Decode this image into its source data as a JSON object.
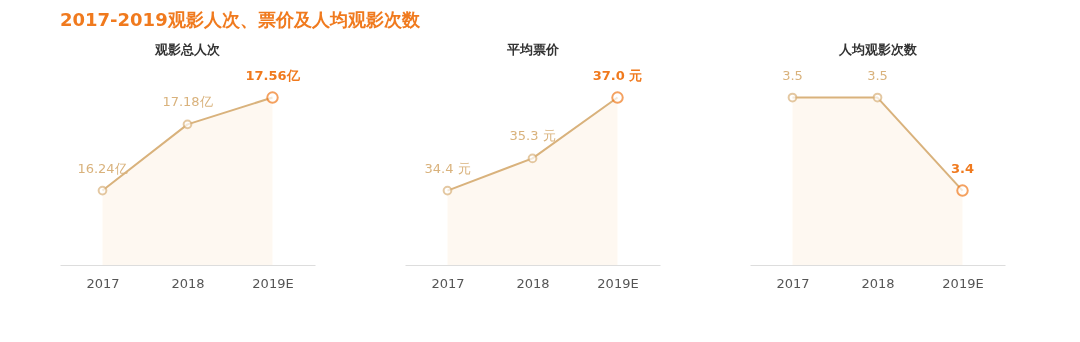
{
  "chart_data": [
    {
      "type": "area",
      "title": "2017-2019观影人次、票价及人均观影次数",
      "subtitle": "观影总人次",
      "categories": [
        "2017",
        "2018",
        "2019E"
      ],
      "series": [
        {
          "color": "#d9b27c",
          "colors": [
            "#d9b27c",
            "#d9b27c",
            "#f07a1e"
          ],
          "values": [
            16.24,
            17.18,
            17.56
          ],
          "value_labels": [
            "16.24亿",
            "17.18亿",
            "17.56亿"
          ]
        }
      ],
      "marker": "circle",
      "tick_labels": "x"
    },
    {
      "type": "area",
      "subtitle": "平均票价",
      "categories": [
        "2017",
        "2018",
        "2019E"
      ],
      "series": [
        {
          "color": "#d9b27c",
          "colors": [
            "#d9b27c",
            "#d9b27c",
            "#f07a1e"
          ],
          "values": [
            34.4,
            35.3,
            37.0
          ],
          "value_labels": [
            "34.4 元",
            "35.3 元",
            "37.0 元"
          ]
        }
      ],
      "marker": "circle",
      "tick_labels": "x"
    },
    {
      "type": "area",
      "subtitle": "人均观影次数",
      "categories": [
        "2017",
        "2018",
        "2019E"
      ],
      "series": [
        {
          "color": "#d9b27c",
          "colors": [
            "#d9b27c",
            "#d9b27c",
            "#f07a1e"
          ],
          "values": [
            3.5,
            3.5,
            3.4
          ],
          "value_labels": [
            "3.5",
            "3.5",
            "3.4"
          ]
        }
      ],
      "marker": "circle",
      "tick_labels": "x"
    }
  ]
}
